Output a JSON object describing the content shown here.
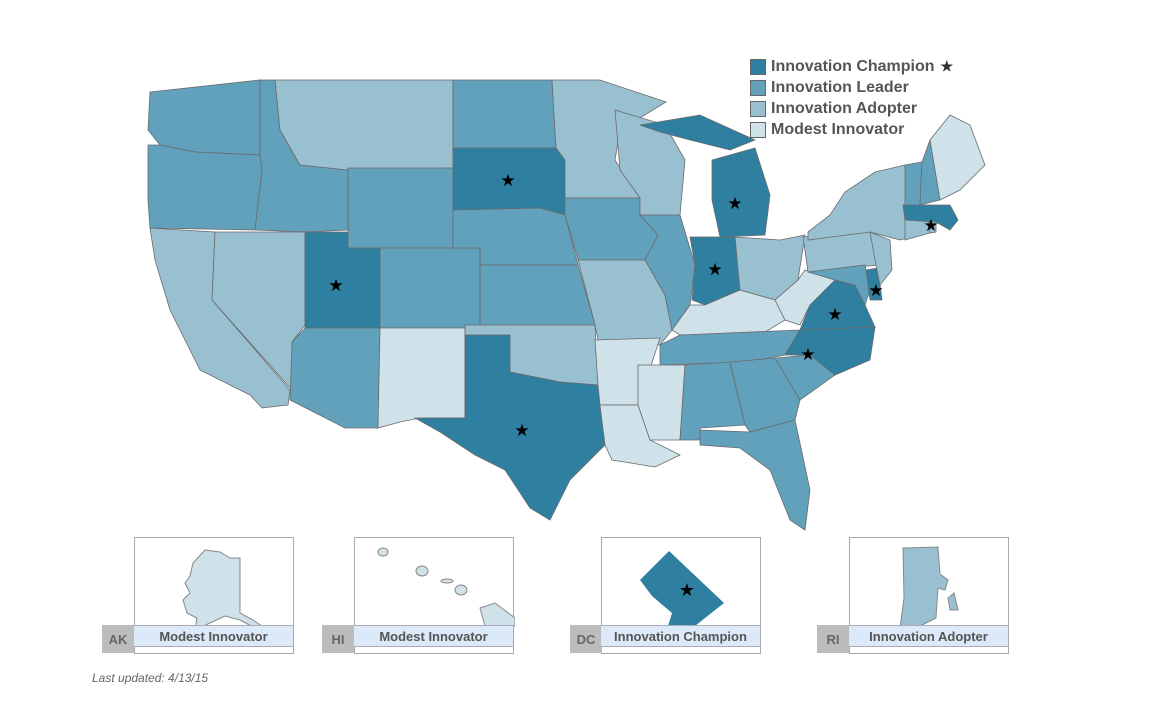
{
  "colors": {
    "Innovation Champion": "#2e7fa0",
    "Innovation Leader": "#62a1bb",
    "Innovation Adopter": "#99c0d1",
    "Modest Innovator": "#cfe1e9"
  },
  "legend": [
    {
      "label": "Innovation Champion",
      "symbol": "★"
    },
    {
      "label": "Innovation Leader"
    },
    {
      "label": "Innovation Adopter"
    },
    {
      "label": "Modest Innovator"
    }
  ],
  "states": {
    "WA": "Innovation Leader",
    "OR": "Innovation Leader",
    "CA": "Innovation Adopter",
    "NV": "Innovation Adopter",
    "ID": "Innovation Leader",
    "MT": "Innovation Adopter",
    "WY": "Innovation Leader",
    "UT": "Innovation Champion",
    "AZ": "Innovation Leader",
    "CO": "Innovation Leader",
    "NM": "Modest Innovator",
    "ND": "Innovation Leader",
    "SD": "Innovation Champion",
    "NE": "Innovation Leader",
    "KS": "Innovation Leader",
    "OK": "Innovation Adopter",
    "TX": "Innovation Champion",
    "MN": "Innovation Adopter",
    "IA": "Innovation Leader",
    "MO": "Innovation Adopter",
    "AR": "Modest Innovator",
    "LA": "Modest Innovator",
    "WI": "Innovation Adopter",
    "IL": "Innovation Leader",
    "MI": "Innovation Champion",
    "IN": "Innovation Champion",
    "OH": "Innovation Adopter",
    "KY": "Modest Innovator",
    "TN": "Innovation Leader",
    "MS": "Modest Innovator",
    "AL": "Innovation Leader",
    "GA": "Innovation Leader",
    "FL": "Innovation Leader",
    "SC": "Innovation Leader",
    "NC": "Innovation Champion",
    "VA": "Innovation Champion",
    "WV": "Modest Innovator",
    "PA": "Innovation Adopter",
    "NY": "Innovation Adopter",
    "MD": "Innovation Leader",
    "DE": "Innovation Champion",
    "NJ": "Innovation Adopter",
    "CT": "Innovation Adopter",
    "RI": "Innovation Adopter",
    "MA": "Innovation Champion",
    "VT": "Innovation Leader",
    "NH": "Innovation Leader",
    "ME": "Modest Innovator"
  },
  "insets": [
    {
      "abbr": "AK",
      "label": "Modest Innovator"
    },
    {
      "abbr": "HI",
      "label": "Modest Innovator"
    },
    {
      "abbr": "DC",
      "label": "Innovation Champion"
    },
    {
      "abbr": "RI",
      "label": "Innovation Adopter"
    }
  ],
  "footer": {
    "updated": "Last updated: 4/13/15"
  }
}
